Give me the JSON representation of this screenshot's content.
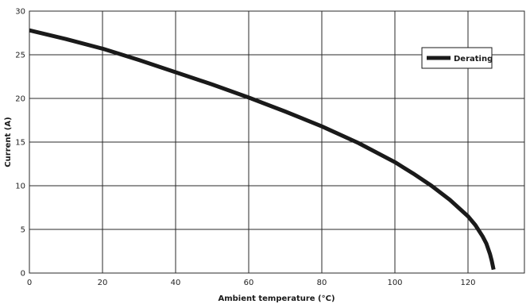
{
  "chart_data": {
    "type": "line",
    "title": "",
    "xlabel": "Ambient temperature (°C)",
    "ylabel": "Current (A)",
    "xlim": [
      0,
      135
    ],
    "ylim": [
      0,
      30
    ],
    "x_ticks": [
      0,
      20,
      40,
      60,
      80,
      100,
      120
    ],
    "y_ticks": [
      0,
      5,
      10,
      15,
      20,
      25,
      30
    ],
    "grid": true,
    "legend_position": "top-right",
    "series": [
      {
        "name": "Derating",
        "color": "#1a1a1a",
        "x": [
          0,
          10,
          20,
          30,
          40,
          50,
          60,
          70,
          80,
          90,
          100,
          105,
          110,
          115,
          120,
          122,
          124,
          125,
          126,
          126.5,
          127
        ],
        "y": [
          27.8,
          26.8,
          25.7,
          24.4,
          23.0,
          21.6,
          20.1,
          18.5,
          16.8,
          14.9,
          12.7,
          11.4,
          10.0,
          8.4,
          6.5,
          5.5,
          4.2,
          3.4,
          2.2,
          1.4,
          0.4
        ]
      }
    ]
  }
}
